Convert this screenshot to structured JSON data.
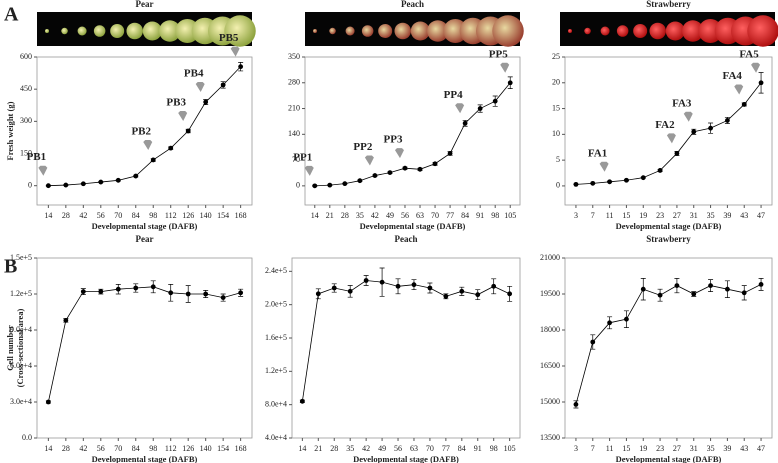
{
  "panel_labels": [
    "A",
    "B"
  ],
  "chart_data": [
    {
      "type": "line",
      "title": "Pear",
      "xlabel": "Developmental stage (DAFB)",
      "ylabel": [
        "Fresh weight (g)"
      ],
      "color": "#000000",
      "categories": [
        14,
        28,
        42,
        56,
        70,
        84,
        98,
        112,
        126,
        140,
        154,
        168
      ],
      "values": [
        0,
        3,
        9,
        17,
        25,
        45,
        120,
        175,
        255,
        390,
        470,
        555
      ],
      "errors": [
        2,
        2,
        2,
        2,
        3,
        4,
        6,
        6,
        8,
        12,
        15,
        20
      ],
      "ylim": [
        -90,
        600
      ],
      "yticks": [
        0,
        150,
        300,
        450,
        600
      ],
      "annotations": [
        {
          "text": "PB1",
          "category": 14
        },
        {
          "text": "PB2",
          "category": 98
        },
        {
          "text": "PB3",
          "category": 126
        },
        {
          "text": "PB4",
          "category": 140
        },
        {
          "text": "PB5",
          "category": 168
        }
      ]
    },
    {
      "type": "line",
      "title": "Peach",
      "xlabel": "Developmental stage (DAFB)",
      "color": "#000000",
      "categories": [
        14,
        21,
        28,
        35,
        42,
        49,
        56,
        63,
        70,
        77,
        84,
        91,
        98,
        105
      ],
      "values": [
        0,
        2,
        6,
        14,
        28,
        36,
        48,
        45,
        60,
        88,
        170,
        210,
        230,
        280
      ],
      "errors": [
        1,
        1,
        1,
        2,
        2,
        2,
        3,
        3,
        4,
        5,
        8,
        10,
        14,
        16
      ],
      "ylim": [
        -52,
        350
      ],
      "yticks": [
        0,
        70,
        140,
        210,
        280,
        350
      ],
      "annotations": [
        {
          "text": "PP1",
          "category": 14
        },
        {
          "text": "PP2",
          "category": 42
        },
        {
          "text": "PP3",
          "category": 56
        },
        {
          "text": "PP4",
          "category": 84
        },
        {
          "text": "PP5",
          "category": 105
        }
      ]
    },
    {
      "type": "line",
      "title": "Strawberry",
      "xlabel": "Developmental stage (DAFB)",
      "color": "#000000",
      "categories": [
        3,
        7,
        11,
        15,
        19,
        23,
        27,
        31,
        35,
        39,
        43,
        47
      ],
      "values": [
        0.3,
        0.5,
        0.8,
        1.1,
        1.6,
        3,
        6.3,
        10.5,
        11.2,
        12.7,
        15.8,
        20
      ],
      "errors": [
        0.05,
        0.05,
        0.1,
        0.1,
        0.1,
        0.2,
        0.4,
        0.5,
        1.0,
        0.6,
        0.3,
        2.0
      ],
      "ylim": [
        -3.7,
        25
      ],
      "yticks": [
        0,
        5,
        10,
        15,
        20,
        25
      ],
      "annotations": [
        {
          "text": "FA1",
          "category": 11
        },
        {
          "text": "FA2",
          "category": 27
        },
        {
          "text": "FA3",
          "category": 31
        },
        {
          "text": "FA4",
          "category": 43
        },
        {
          "text": "FA5",
          "category": 47
        }
      ]
    },
    {
      "type": "line",
      "title": "Pear",
      "xlabel": "Developmental stage (DAFB)",
      "ylabel": [
        "Cell number",
        "(Cross-sectional area)"
      ],
      "color": "#000000",
      "categories": [
        14,
        28,
        42,
        56,
        70,
        84,
        98,
        112,
        126,
        140,
        154,
        168
      ],
      "values": [
        30000,
        98000,
        122000,
        122000,
        124000,
        125000,
        126000,
        121000,
        120000,
        120000,
        117000,
        121000
      ],
      "errors": [
        1000,
        1500,
        2500,
        2000,
        4000,
        3500,
        5000,
        7000,
        7000,
        3000,
        3000,
        3000
      ],
      "ylim": [
        0,
        150000
      ],
      "yticks": [
        {
          "value": 0,
          "label": "0.0"
        },
        {
          "value": 30000,
          "label": "3.0e+4"
        },
        {
          "value": 60000,
          "label": "6.0e+4"
        },
        {
          "value": 90000,
          "label": "9.0e+4"
        },
        {
          "value": 120000,
          "label": "1.2e+5"
        },
        {
          "value": 150000,
          "label": "1.5e+5"
        }
      ]
    },
    {
      "type": "line",
      "title": "Peach",
      "xlabel": "Developmental stage (DAFB)",
      "color": "#000000",
      "categories": [
        14,
        21,
        28,
        35,
        42,
        49,
        56,
        63,
        70,
        77,
        84,
        91,
        98,
        105
      ],
      "values": [
        84000,
        213000,
        220000,
        216000,
        229000,
        227000,
        222000,
        224000,
        220000,
        210000,
        216000,
        212000,
        222000,
        213000
      ],
      "errors": [
        1500,
        6000,
        5000,
        7000,
        6000,
        17000,
        9000,
        6000,
        6000,
        3000,
        5000,
        6000,
        9000,
        9000
      ],
      "ylim": [
        40000,
        256000
      ],
      "yticks": [
        {
          "value": 40000,
          "label": "4.0e+4"
        },
        {
          "value": 80000,
          "label": "8.0e+4"
        },
        {
          "value": 120000,
          "label": "1.2e+5"
        },
        {
          "value": 160000,
          "label": "1.6e+5"
        },
        {
          "value": 200000,
          "label": "2.0e+5"
        },
        {
          "value": 240000,
          "label": "2.4e+5"
        }
      ]
    },
    {
      "type": "line",
      "title": "Strawberry",
      "xlabel": "Developmental stage (DAFB)",
      "color": "#000000",
      "categories": [
        3,
        7,
        11,
        15,
        19,
        23,
        27,
        31,
        35,
        39,
        43,
        47
      ],
      "values": [
        14900,
        17500,
        18300,
        18450,
        19700,
        19450,
        19850,
        19500,
        19850,
        19700,
        19550,
        19900
      ],
      "errors": [
        150,
        300,
        250,
        350,
        450,
        250,
        300,
        100,
        250,
        350,
        300,
        250
      ],
      "ylim": [
        13500,
        21000
      ],
      "yticks": [
        13500,
        15000,
        16500,
        18000,
        19500,
        21000
      ]
    }
  ]
}
